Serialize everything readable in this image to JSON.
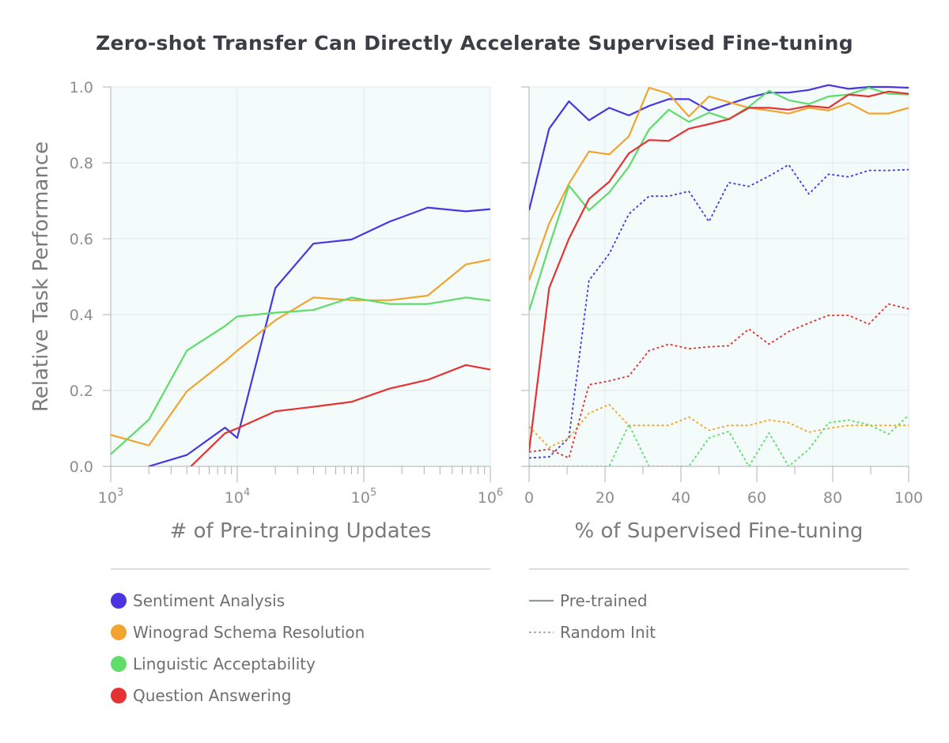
{
  "title": "Zero-shot Transfer Can Directly Accelerate Supervised Fine-tuning",
  "colors": {
    "sentiment": "#4a35e0",
    "winograd": "#f2a42e",
    "linguistic": "#5fdc6a",
    "qa": "#e63232",
    "panel_bg": "#f3fbfb",
    "grid": "#e4e8ea",
    "axis": "#b0b0b0"
  },
  "legend": {
    "tasks": [
      {
        "key": "sentiment",
        "label": "Sentiment Analysis"
      },
      {
        "key": "winograd",
        "label": "Winograd Schema Resolution"
      },
      {
        "key": "linguistic",
        "label": "Linguistic Acceptability"
      },
      {
        "key": "qa",
        "label": "Question Answering"
      }
    ],
    "styles": [
      {
        "key": "solid",
        "label": "Pre-trained"
      },
      {
        "key": "dotted",
        "label": "Random Init"
      }
    ]
  },
  "chart_data": [
    {
      "type": "line",
      "xlabel": "# of Pre-training Updates",
      "ylabel": "Relative Task Performance",
      "xscale": "log",
      "xlim": [
        1000,
        1000000
      ],
      "ylim": [
        0,
        1
      ],
      "xticks": [
        {
          "value": 1000,
          "base": "10",
          "exp": "3"
        },
        {
          "value": 10000,
          "base": "10",
          "exp": "4"
        },
        {
          "value": 100000,
          "base": "10",
          "exp": "5"
        },
        {
          "value": 1000000,
          "base": "10",
          "exp": "6"
        }
      ],
      "yticks": [
        "0.0",
        "0.2",
        "0.4",
        "0.6",
        "0.8",
        "1.0"
      ],
      "grid": true,
      "series": [
        {
          "name": "Sentiment Analysis",
          "color_key": "sentiment",
          "style": "solid",
          "x": [
            2000,
            4000,
            8000,
            10000,
            20000,
            40000,
            80000,
            160000,
            320000,
            640000,
            1000000
          ],
          "y": [
            0.0,
            0.03,
            0.102,
            0.075,
            0.47,
            0.587,
            0.598,
            0.645,
            0.682,
            0.672,
            0.678
          ]
        },
        {
          "name": "Winograd Schema Resolution",
          "color_key": "winograd",
          "style": "solid",
          "x": [
            1000,
            2000,
            4000,
            8000,
            10000,
            20000,
            40000,
            80000,
            160000,
            320000,
            640000,
            1000000
          ],
          "y": [
            0.083,
            0.055,
            0.198,
            0.277,
            0.305,
            0.385,
            0.445,
            0.438,
            0.438,
            0.45,
            0.532,
            0.545
          ]
        },
        {
          "name": "Linguistic Acceptability",
          "color_key": "linguistic",
          "style": "solid",
          "x": [
            1000,
            2000,
            4000,
            8000,
            10000,
            20000,
            40000,
            80000,
            160000,
            320000,
            640000,
            1000000
          ],
          "y": [
            0.032,
            0.123,
            0.305,
            0.37,
            0.395,
            0.405,
            0.412,
            0.445,
            0.428,
            0.428,
            0.445,
            0.437
          ]
        },
        {
          "name": "Question Answering",
          "color_key": "qa",
          "style": "solid",
          "x": [
            4300,
            8000,
            10000,
            20000,
            40000,
            80000,
            160000,
            320000,
            640000,
            1000000
          ],
          "y": [
            0.0,
            0.087,
            0.1,
            0.145,
            0.157,
            0.17,
            0.205,
            0.228,
            0.267,
            0.255
          ]
        }
      ]
    },
    {
      "type": "line",
      "xlabel": "% of Supervised Fine-tuning",
      "ylabel": "",
      "xlim": [
        0,
        100
      ],
      "ylim": [
        0,
        1
      ],
      "xticks": [
        "0",
        "20",
        "40",
        "60",
        "80",
        "100"
      ],
      "grid": true,
      "series": [
        {
          "name": "Sentiment Analysis",
          "color_key": "sentiment",
          "style": "solid",
          "x": [
            0,
            5.3,
            10.5,
            15.8,
            21.1,
            26.3,
            31.6,
            36.8,
            42.1,
            47.4,
            52.6,
            57.9,
            63.2,
            68.4,
            73.7,
            78.9,
            84.2,
            89.5,
            94.7,
            100
          ],
          "y": [
            0.675,
            0.89,
            0.962,
            0.912,
            0.945,
            0.925,
            0.95,
            0.968,
            0.968,
            0.938,
            0.955,
            0.972,
            0.985,
            0.985,
            0.992,
            1.005,
            0.995,
            1.0,
            1.0,
            0.998
          ]
        },
        {
          "name": "Winograd Schema Resolution",
          "color_key": "winograd",
          "style": "solid",
          "x": [
            0,
            5.3,
            10.5,
            15.8,
            21.1,
            26.3,
            31.6,
            36.8,
            42.1,
            47.4,
            52.6,
            57.9,
            63.2,
            68.4,
            73.7,
            78.9,
            84.2,
            89.5,
            94.7,
            100
          ],
          "y": [
            0.49,
            0.64,
            0.745,
            0.83,
            0.822,
            0.87,
            0.998,
            0.982,
            0.922,
            0.975,
            0.96,
            0.945,
            0.938,
            0.93,
            0.945,
            0.938,
            0.958,
            0.93,
            0.93,
            0.945
          ]
        },
        {
          "name": "Linguistic Acceptability",
          "color_key": "linguistic",
          "style": "solid",
          "x": [
            0,
            5.3,
            10.5,
            15.8,
            21.1,
            26.3,
            31.6,
            36.8,
            42.1,
            47.4,
            52.6,
            57.9,
            63.2,
            68.4,
            73.7,
            78.9,
            84.2,
            89.5,
            94.7,
            100
          ],
          "y": [
            0.41,
            0.58,
            0.74,
            0.675,
            0.722,
            0.79,
            0.888,
            0.94,
            0.908,
            0.932,
            0.915,
            0.948,
            0.99,
            0.965,
            0.955,
            0.975,
            0.98,
            0.998,
            0.982,
            0.98
          ]
        },
        {
          "name": "Question Answering",
          "color_key": "qa",
          "style": "solid",
          "x": [
            0,
            5.3,
            10.5,
            15.8,
            21.1,
            26.3,
            31.6,
            36.8,
            42.1,
            47.4,
            52.6,
            57.9,
            63.2,
            68.4,
            73.7,
            78.9,
            84.2,
            89.5,
            94.7,
            100
          ],
          "y": [
            0.04,
            0.47,
            0.6,
            0.705,
            0.75,
            0.825,
            0.86,
            0.858,
            0.89,
            0.902,
            0.915,
            0.945,
            0.945,
            0.94,
            0.95,
            0.945,
            0.98,
            0.975,
            0.988,
            0.982
          ]
        },
        {
          "name": "Sentiment Analysis",
          "color_key": "sentiment",
          "style": "dotted",
          "x": [
            0,
            5.3,
            10.5,
            15.8,
            21.1,
            26.3,
            31.6,
            36.8,
            42.1,
            47.4,
            52.6,
            57.9,
            63.2,
            68.4,
            73.7,
            78.9,
            84.2,
            89.5,
            94.7,
            100
          ],
          "y": [
            0.022,
            0.025,
            0.075,
            0.49,
            0.56,
            0.665,
            0.712,
            0.712,
            0.725,
            0.645,
            0.748,
            0.738,
            0.765,
            0.795,
            0.718,
            0.77,
            0.763,
            0.78,
            0.78,
            0.782
          ]
        },
        {
          "name": "Winograd Schema Resolution",
          "color_key": "winograd",
          "style": "dotted",
          "x": [
            0,
            5.3,
            10.5,
            15.8,
            21.1,
            26.3,
            31.6,
            36.8,
            42.1,
            47.4,
            52.6,
            57.9,
            63.2,
            68.4,
            73.7,
            78.9,
            84.2,
            89.5,
            94.7,
            100
          ],
          "y": [
            0.105,
            0.05,
            0.075,
            0.14,
            0.163,
            0.108,
            0.108,
            0.108,
            0.13,
            0.095,
            0.108,
            0.108,
            0.122,
            0.115,
            0.09,
            0.1,
            0.108,
            0.108,
            0.108,
            0.108
          ]
        },
        {
          "name": "Linguistic Acceptability",
          "color_key": "linguistic",
          "style": "dotted",
          "x": [
            0,
            10.5,
            21.1,
            26.3,
            31.6,
            42.1,
            47.4,
            52.6,
            57.9,
            63.2,
            68.4,
            73.7,
            78.9,
            84.2,
            89.5,
            94.7,
            100
          ],
          "y": [
            0.0,
            0.0,
            0.0,
            0.11,
            0.0,
            0.0,
            0.075,
            0.092,
            0.0,
            0.088,
            0.0,
            0.045,
            0.115,
            0.122,
            0.11,
            0.085,
            0.135
          ]
        },
        {
          "name": "Question Answering",
          "color_key": "qa",
          "style": "dotted",
          "x": [
            0,
            5.3,
            10.5,
            15.8,
            21.1,
            26.3,
            31.6,
            36.8,
            42.1,
            47.4,
            52.6,
            57.9,
            63.2,
            68.4,
            73.7,
            78.9,
            84.2,
            89.5,
            94.7,
            100
          ],
          "y": [
            0.038,
            0.045,
            0.022,
            0.215,
            0.225,
            0.238,
            0.305,
            0.322,
            0.31,
            0.315,
            0.318,
            0.362,
            0.322,
            0.355,
            0.378,
            0.398,
            0.398,
            0.375,
            0.428,
            0.415
          ]
        }
      ]
    }
  ]
}
